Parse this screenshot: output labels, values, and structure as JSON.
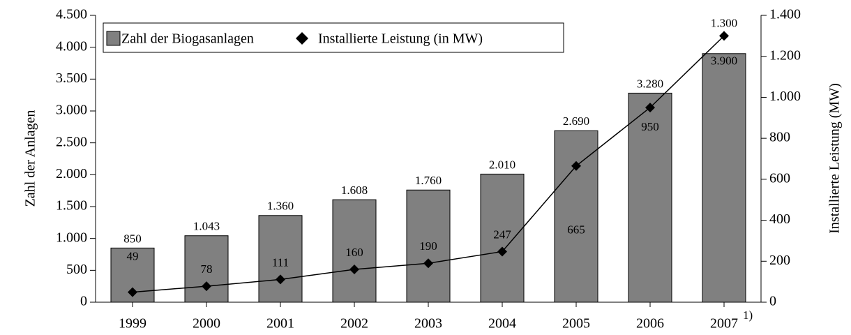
{
  "chart_data": {
    "type": "bar",
    "categories": [
      "1999",
      "2000",
      "2001",
      "2002",
      "2003",
      "2004",
      "2005",
      "2006",
      "2007"
    ],
    "annotation": "1)",
    "ylabel": "Zahl der Anlagen",
    "y2label": "Installierte Leistung (MW)",
    "series": [
      {
        "name": "Zahl der Biogasanlagen",
        "type": "bar",
        "color": "#808080",
        "values": [
          850,
          1043,
          1360,
          1608,
          1760,
          2010,
          2690,
          3280,
          3900
        ],
        "value_labels": [
          "850",
          "1.043",
          "1.360",
          "1.608",
          "1.760",
          "2.010",
          "2.690",
          "3.280",
          "3.900"
        ]
      },
      {
        "name": "Installierte Leistung (in MW)",
        "type": "line",
        "axis": "y2",
        "color": "#000000",
        "values": [
          49,
          78,
          111,
          160,
          190,
          247,
          665,
          950,
          1300
        ],
        "value_labels": [
          "49",
          "78",
          "111",
          "160",
          "190",
          "247",
          "665",
          "950",
          "1.300"
        ]
      }
    ],
    "ylim": [
      0,
      4500
    ],
    "yticks": [
      0,
      500,
      {
        "value": 1000,
        "label": "1.000"
      },
      {
        "value": 1500,
        "label": "1.500"
      },
      {
        "value": 2000,
        "label": "2.000"
      },
      {
        "value": 2500,
        "label": "2.500"
      },
      {
        "value": 3000,
        "label": "3.000"
      },
      {
        "value": 3500,
        "label": "3.500"
      },
      {
        "value": 4000,
        "label": "4.000"
      },
      {
        "value": 4500,
        "label": "4.500"
      }
    ],
    "y2lim": [
      0,
      1400
    ],
    "y2ticks": [
      0,
      200,
      400,
      600,
      800,
      {
        "value": 1000,
        "label": "1.000"
      },
      {
        "value": 1200,
        "label": "1.200"
      },
      {
        "value": 1400,
        "label": "1.400"
      }
    ],
    "legend": "top-left"
  }
}
